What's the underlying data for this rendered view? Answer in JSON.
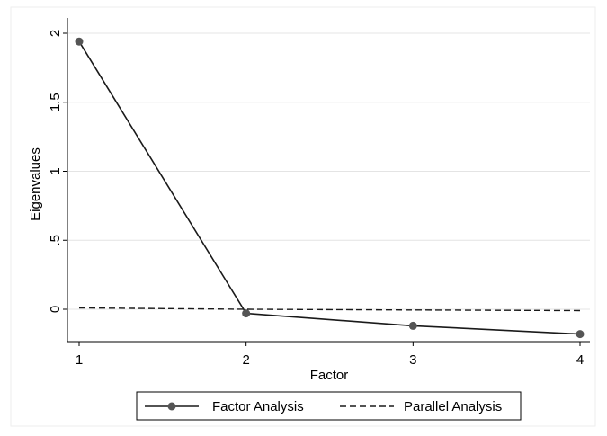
{
  "chart_data": {
    "type": "line",
    "title": "",
    "xlabel": "Factor",
    "ylabel": "Eigenvalues",
    "x": [
      1,
      2,
      3,
      4
    ],
    "xticks": [
      1,
      2,
      3,
      4
    ],
    "xtick_labels": [
      "1",
      "2",
      "3",
      "4"
    ],
    "yticks": [
      0,
      0.5,
      1,
      1.5,
      2
    ],
    "ytick_labels": [
      "0",
      ".5",
      "1",
      "1.5",
      "2"
    ],
    "xlim": [
      1,
      4
    ],
    "ylim": [
      -0.2,
      2.05
    ],
    "grid": true,
    "legend_position": "bottom",
    "series": [
      {
        "name": "Factor Analysis",
        "values": [
          1.94,
          -0.03,
          -0.12,
          -0.18
        ],
        "style": "solid",
        "marker": "circle",
        "color": "#1a1a1a",
        "marker_color": "#555555"
      },
      {
        "name": "Parallel Analysis",
        "values": [
          0.01,
          0.0,
          -0.005,
          -0.01
        ],
        "style": "dashed",
        "marker": "none",
        "color": "#1a1a1a"
      }
    ]
  }
}
